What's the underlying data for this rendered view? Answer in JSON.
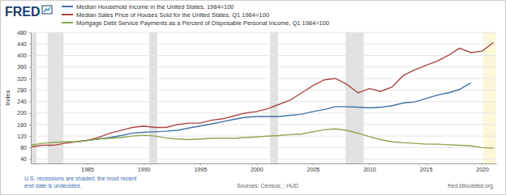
{
  "chart_data": {
    "type": "line",
    "title": "FRED",
    "y_label": "Index",
    "annotations": [
      "U.S. recessions are shaded; the most recent",
      "end date is undecided.",
      "Sources: Census; ; HUD",
      "fred.stlouisfed.org"
    ],
    "x": [
      1980,
      1981,
      1982,
      1983,
      1984,
      1985,
      1986,
      1987,
      1988,
      1989,
      1990,
      1991,
      1992,
      1993,
      1994,
      1995,
      1996,
      1997,
      1998,
      1999,
      2000,
      2001,
      2002,
      2003,
      2004,
      2005,
      2006,
      2007,
      2008,
      2009,
      2010,
      2011,
      2012,
      2013,
      2014,
      2015,
      2016,
      2017,
      2018,
      2019,
      2020,
      2021
    ],
    "series": [
      {
        "name": "Median Household Income in the United States, 1984=100",
        "color": "#4572a7",
        "values": [
          null,
          null,
          null,
          null,
          100,
          105,
          110,
          115,
          122,
          130,
          133,
          135,
          137,
          140,
          148,
          155,
          162,
          170,
          178,
          185,
          188,
          188,
          188,
          192,
          196,
          205,
          212,
          222,
          222,
          220,
          218,
          220,
          225,
          235,
          238,
          250,
          262,
          270,
          282,
          305,
          null,
          null
        ]
      },
      {
        "name": "Median Sales Price of Houses Sold for the United States, Q1 1984=100",
        "color": "#aa4643",
        "values": [
          82,
          88,
          88,
          95,
          100,
          105,
          115,
          130,
          140,
          150,
          155,
          150,
          150,
          160,
          165,
          165,
          175,
          180,
          190,
          200,
          205,
          215,
          230,
          245,
          270,
          295,
          315,
          320,
          300,
          270,
          285,
          275,
          290,
          330,
          350,
          365,
          380,
          400,
          425,
          410,
          415,
          445
        ]
      },
      {
        "name": "Mortgage Debt Service Payments as a Percent of Disposable Personal Income, Q1 1984=100",
        "color": "#89a54e",
        "values": [
          88,
          95,
          98,
          100,
          100,
          105,
          110,
          112,
          115,
          120,
          123,
          120,
          113,
          110,
          108,
          110,
          112,
          113,
          112,
          115,
          117,
          120,
          122,
          125,
          127,
          135,
          142,
          145,
          140,
          130,
          118,
          108,
          100,
          97,
          95,
          92,
          92,
          90,
          88,
          86,
          80,
          78
        ]
      }
    ],
    "recessions": [
      {
        "start": 1980.0,
        "end": 1980.5
      },
      {
        "start": 1981.5,
        "end": 1982.9
      },
      {
        "start": 1990.5,
        "end": 1991.2
      },
      {
        "start": 2001.2,
        "end": 2001.9
      },
      {
        "start": 2007.9,
        "end": 2009.5
      },
      {
        "start": 2020.1,
        "end": 2021.25
      }
    ],
    "xlim": [
      1980,
      2021.25
    ],
    "xticks": [
      1985,
      1990,
      1995,
      2000,
      2005,
      2010,
      2015,
      2020
    ],
    "ylim": [
      25,
      480
    ],
    "yticks": [
      40,
      80,
      120,
      160,
      200,
      240,
      280,
      320,
      360,
      400,
      440,
      480
    ],
    "grid": true
  }
}
